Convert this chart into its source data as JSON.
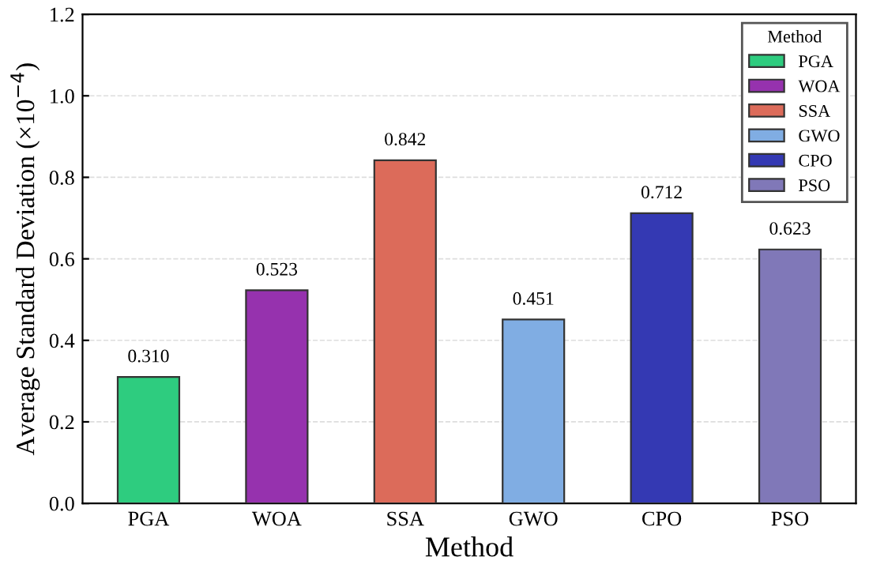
{
  "chart_data": {
    "type": "bar",
    "xlabel": "Method",
    "ylabel": "Average Standard Deviation (×10$^{−4}$)",
    "legend_title": "Method",
    "categories": [
      "PGA",
      "WOA",
      "SSA",
      "GWO",
      "CPO",
      "PSO"
    ],
    "series": [
      {
        "name": "PGA",
        "color": "#2ecc7f",
        "values": [
          0.31,
          null,
          null,
          null,
          null,
          null
        ],
        "value_labels": [
          "0.310",
          null,
          null,
          null,
          null,
          null
        ]
      },
      {
        "name": "WOA",
        "color": "#9632ae",
        "values": [
          null,
          0.523,
          null,
          null,
          null,
          null
        ],
        "value_labels": [
          null,
          "0.523",
          null,
          null,
          null,
          null
        ]
      },
      {
        "name": "SSA",
        "color": "#dc6b5a",
        "values": [
          null,
          null,
          0.842,
          null,
          null,
          null
        ],
        "value_labels": [
          null,
          null,
          "0.842",
          null,
          null,
          null
        ]
      },
      {
        "name": "GWO",
        "color": "#80ade3",
        "values": [
          null,
          null,
          null,
          0.451,
          null,
          null
        ],
        "value_labels": [
          null,
          null,
          null,
          "0.451",
          null,
          null
        ]
      },
      {
        "name": "CPO",
        "color": "#3439b3",
        "values": [
          null,
          null,
          null,
          null,
          0.712,
          null
        ],
        "value_labels": [
          null,
          null,
          null,
          null,
          "0.712",
          null
        ]
      },
      {
        "name": "PSO",
        "color": "#8078b8",
        "values": [
          null,
          null,
          null,
          null,
          null,
          0.623
        ],
        "value_labels": [
          null,
          null,
          null,
          null,
          null,
          "0.623"
        ]
      }
    ],
    "ylim": [
      0,
      1.2
    ],
    "yticks": [
      {
        "value": 0,
        "label": "0.0"
      },
      0.2,
      0.4,
      0.6,
      0.8,
      {
        "value": 1,
        "label": "1.0"
      },
      1.2
    ],
    "grid": "y",
    "legend": "top right"
  }
}
